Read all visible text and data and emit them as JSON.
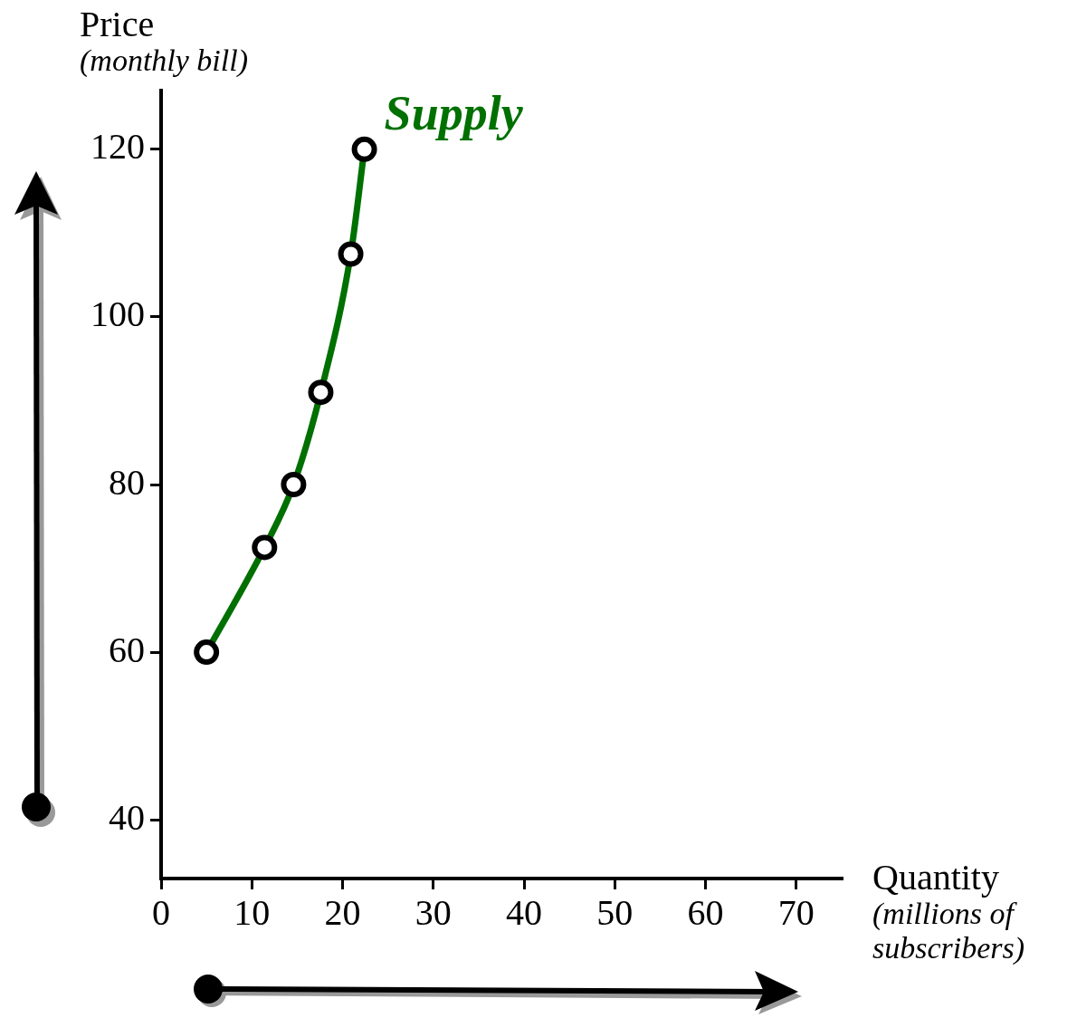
{
  "chart_data": {
    "type": "line",
    "xlabel": "Quantity\n(millions of\nsubscribers)",
    "ylabel": "Price\n(monthly bill)",
    "x": [
      5,
      11.4,
      14.6,
      17.6,
      20.9,
      22.4
    ],
    "series": [
      {
        "name": "Supply",
        "color": "#007000",
        "values": [
          60,
          72.5,
          80,
          91,
          107.5,
          120
        ]
      }
    ],
    "xlim": [
      0,
      75
    ],
    "xticks": [
      0,
      10,
      20,
      30,
      40,
      50,
      60,
      70
    ],
    "ylim": [
      33,
      127
    ],
    "yticks": [
      40,
      60,
      80,
      100,
      120
    ],
    "grid": false,
    "legend": false,
    "marker": "circle",
    "line_style": "solid"
  }
}
